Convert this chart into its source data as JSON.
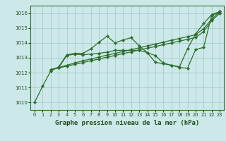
{
  "title": "Graphe pression niveau de la mer (hPa)",
  "background_color": "#cce8e8",
  "grid_color": "#a8cccc",
  "line_color": "#2d6e2d",
  "marker_color": "#2d6e2d",
  "ylim": [
    1009.5,
    1016.5
  ],
  "xlim": [
    -0.5,
    23.5
  ],
  "yticks": [
    1010,
    1011,
    1012,
    1013,
    1014,
    1015,
    1016
  ],
  "xticks": [
    0,
    1,
    2,
    3,
    4,
    5,
    6,
    7,
    8,
    9,
    10,
    11,
    12,
    13,
    14,
    15,
    16,
    17,
    18,
    19,
    20,
    21,
    22,
    23
  ],
  "lines": [
    {
      "x": [
        0,
        1,
        2,
        3,
        4,
        5,
        6,
        7,
        8,
        9,
        10,
        11,
        12,
        13,
        14,
        15,
        16,
        17,
        18,
        19,
        20,
        21,
        22,
        23
      ],
      "y": [
        1010.0,
        1011.1,
        1012.1,
        1012.4,
        1013.2,
        1013.3,
        1013.3,
        1013.6,
        1014.05,
        1014.45,
        1014.0,
        1014.2,
        1014.35,
        1013.8,
        1013.35,
        1012.7,
        1012.6,
        1012.5,
        1012.4,
        1013.6,
        1014.6,
        1015.3,
        1015.9,
        1016.1
      ]
    },
    {
      "x": [
        2,
        3,
        4,
        5,
        6,
        7,
        8,
        9,
        10,
        11,
        12,
        13,
        14,
        15,
        16,
        17,
        18,
        19,
        20,
        21,
        22,
        23
      ],
      "y": [
        1012.2,
        1012.35,
        1012.5,
        1012.65,
        1012.8,
        1012.92,
        1013.05,
        1013.18,
        1013.3,
        1013.42,
        1013.55,
        1013.67,
        1013.8,
        1013.92,
        1014.05,
        1014.18,
        1014.3,
        1014.42,
        1014.55,
        1014.95,
        1015.6,
        1016.1
      ]
    },
    {
      "x": [
        2,
        3,
        4,
        5,
        6,
        7,
        8,
        9,
        10,
        11,
        12,
        13,
        14,
        15,
        16,
        17,
        18,
        19,
        20,
        21,
        22,
        23
      ],
      "y": [
        1012.2,
        1012.32,
        1012.44,
        1012.56,
        1012.68,
        1012.8,
        1012.92,
        1013.04,
        1013.16,
        1013.28,
        1013.4,
        1013.52,
        1013.64,
        1013.76,
        1013.88,
        1014.0,
        1014.12,
        1014.24,
        1014.36,
        1014.76,
        1015.5,
        1015.98
      ]
    },
    {
      "x": [
        2,
        3,
        4,
        5,
        6,
        7,
        8,
        9,
        10,
        11,
        12,
        13,
        14,
        15,
        16,
        17,
        18,
        19,
        20,
        21,
        22,
        23
      ],
      "y": [
        1012.2,
        1012.35,
        1013.15,
        1013.25,
        1013.2,
        1013.25,
        1013.3,
        1013.38,
        1013.5,
        1013.5,
        1013.5,
        1013.5,
        1013.35,
        1013.15,
        1012.65,
        1012.5,
        1012.35,
        1012.3,
        1013.55,
        1013.7,
        1015.85,
        1016.05
      ]
    }
  ]
}
